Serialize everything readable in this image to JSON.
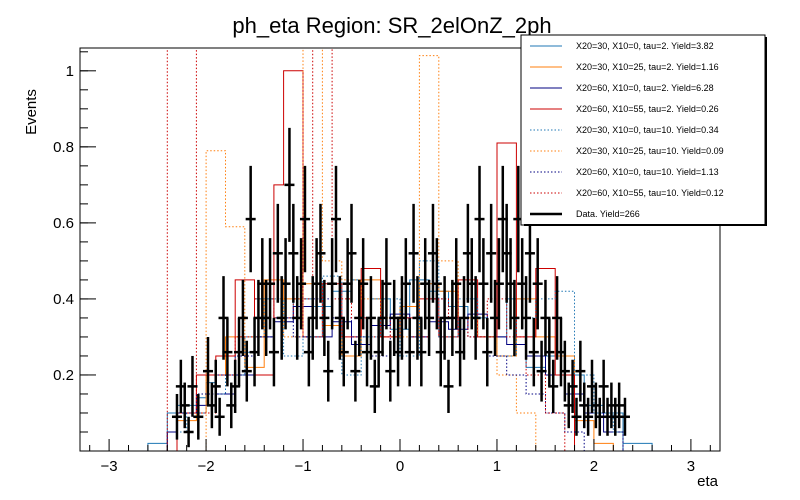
{
  "chart_data": {
    "type": "line",
    "title": "ph_eta Region: SR_2elOnZ_2ph",
    "xlabel": "eta",
    "ylabel": "Events",
    "xlim": [
      -3.3,
      3.3
    ],
    "ylim": [
      0,
      1.06
    ],
    "xticks": [
      -3,
      -2,
      -1,
      0,
      1,
      2,
      3
    ],
    "yticks": [
      0.2,
      0.4,
      0.6,
      0.8,
      1
    ],
    "legend_position": "top-right",
    "bin_edges": [
      -3.3,
      -2.8,
      -2.6,
      -2.4,
      -2.3,
      -2.2,
      -2.1,
      -2.0,
      -1.9,
      -1.8,
      -1.7,
      -1.6,
      -1.5,
      -1.4,
      -1.3,
      -1.2,
      -1.1,
      -1.0,
      -0.9,
      -0.8,
      -0.7,
      -0.6,
      -0.5,
      -0.4,
      -0.3,
      -0.2,
      -0.1,
      0.0,
      0.1,
      0.2,
      0.3,
      0.4,
      0.5,
      0.6,
      0.7,
      0.8,
      0.9,
      1.0,
      1.1,
      1.2,
      1.3,
      1.4,
      1.5,
      1.6,
      1.7,
      1.8,
      1.9,
      2.0,
      2.1,
      2.2,
      2.3,
      2.4,
      2.6,
      2.8,
      3.3
    ],
    "series": [
      {
        "name": "X20=30, X10=0, tau=2. Yield=3.82",
        "color": "#1f77b4",
        "style": "solid",
        "values": [
          0,
          0,
          0.02,
          0.1,
          0.12,
          0.12,
          0.14,
          0.18,
          0.15,
          0.15,
          0.26,
          0.26,
          0.4,
          0.4,
          0.35,
          0.35,
          0.4,
          0.4,
          0.38,
          0.38,
          0.42,
          0.42,
          0.45,
          0.45,
          0.4,
          0.4,
          0.32,
          0.32,
          0.45,
          0.45,
          0.42,
          0.42,
          0.38,
          0.38,
          0.35,
          0.35,
          0.3,
          0.3,
          0.4,
          0.4,
          0.22,
          0.22,
          0.25,
          0.25,
          0.2,
          0.2,
          0.12,
          0.12,
          0.1,
          0.1,
          0.02,
          0.02,
          0
        ]
      },
      {
        "name": "X20=30, X10=25, tau=2. Yield=1.16",
        "color": "#ff7f0e",
        "style": "solid",
        "values": [
          0,
          0,
          0,
          0.05,
          0.08,
          0.08,
          0.1,
          0.2,
          0.2,
          0.3,
          0.3,
          0.22,
          0.22,
          0.45,
          0.45,
          0.4,
          0.4,
          0.44,
          0.44,
          0.33,
          0.33,
          0.25,
          0.25,
          0.45,
          0.45,
          0.3,
          0.3,
          0.38,
          0.38,
          0.44,
          0.44,
          0.42,
          0.42,
          0.35,
          0.35,
          0.3,
          0.3,
          0.25,
          0.25,
          0.4,
          0.4,
          0.3,
          0.3,
          0.25,
          0.25,
          0.08,
          0.08,
          0.02,
          0.02,
          0,
          0,
          0,
          0
        ]
      },
      {
        "name": "X20=60, X10=0, tau=2. Yield=6.28",
        "color": "#000080",
        "style": "solid",
        "values": [
          0,
          0,
          0,
          0.05,
          0.1,
          0.1,
          0.12,
          0.12,
          0.15,
          0.15,
          0.2,
          0.2,
          0.3,
          0.3,
          0.34,
          0.34,
          0.38,
          0.38,
          0.3,
          0.3,
          0.34,
          0.34,
          0.28,
          0.28,
          0.33,
          0.33,
          0.36,
          0.36,
          0.3,
          0.3,
          0.34,
          0.34,
          0.32,
          0.32,
          0.36,
          0.36,
          0.3,
          0.3,
          0.28,
          0.28,
          0.25,
          0.25,
          0.2,
          0.2,
          0.15,
          0.15,
          0.1,
          0.1,
          0.05,
          0.05,
          0,
          0,
          0
        ]
      },
      {
        "name": "X20=60, X10=55, tau=2. Yield=0.26",
        "color": "#cc0000",
        "style": "solid",
        "values": [
          0,
          0,
          0,
          0,
          0.1,
          0.1,
          0.2,
          0.2,
          0.25,
          0.25,
          0.45,
          0.45,
          0.2,
          0.2,
          0.7,
          1.0,
          1.0,
          0.3,
          0.3,
          0.44,
          0.44,
          0.3,
          0.3,
          0.48,
          0.48,
          0.3,
          0.3,
          0.35,
          0.35,
          0.4,
          0.4,
          0.3,
          0.3,
          0.45,
          0.45,
          0.3,
          0.3,
          0.81,
          0.81,
          0.3,
          0.3,
          0.48,
          0.48,
          0.2,
          0.2,
          0,
          0,
          0,
          0,
          0,
          0,
          0,
          0
        ]
      },
      {
        "name": "X20=30, X10=0, tau=10. Yield=0.34",
        "color": "#1f77b4",
        "style": "dotted",
        "values": [
          0,
          0,
          0,
          0.05,
          0.05,
          0.1,
          0.1,
          0.15,
          0.15,
          0.2,
          0.2,
          0.3,
          0.3,
          0.4,
          0.4,
          0.25,
          0.25,
          0.3,
          0.3,
          0.46,
          0.46,
          0.2,
          0.2,
          0.3,
          0.3,
          0.4,
          0.4,
          0.25,
          0.25,
          0.5,
          0.5,
          0.3,
          0.3,
          0.4,
          0.4,
          0.3,
          0.3,
          0.25,
          0.25,
          0.35,
          0.35,
          0.4,
          0.4,
          0.42,
          0.42,
          0.2,
          0.2,
          0.1,
          0.1,
          0.05,
          0,
          0,
          0
        ]
      },
      {
        "name": "X20=30, X10=25, tau=10. Yield=0.09",
        "color": "#ff7f0e",
        "style": "dotted",
        "values": [
          0,
          0,
          0,
          0,
          0,
          0,
          0,
          0.79,
          0.79,
          0.59,
          0.59,
          0.3,
          0.3,
          0.4,
          0.4,
          0.3,
          0.3,
          1.06,
          1.06,
          0.5,
          0.5,
          0.45,
          0.45,
          0.4,
          0.4,
          0.35,
          0.35,
          0.3,
          0.3,
          1.04,
          1.04,
          0.5,
          0.5,
          0.35,
          0.35,
          0.3,
          0.3,
          0.2,
          0.2,
          0.1,
          0.1,
          0,
          0,
          0,
          0,
          0,
          0,
          0,
          0,
          0,
          0,
          0,
          0
        ]
      },
      {
        "name": "X20=60, X10=0, tau=10. Yield=1.13",
        "color": "#000080",
        "style": "dotted",
        "values": [
          0,
          0,
          0,
          0.05,
          0.1,
          0.1,
          0.15,
          0.15,
          0.2,
          0.2,
          0.25,
          0.25,
          0.3,
          0.3,
          0.35,
          0.35,
          0.3,
          0.3,
          0.4,
          0.4,
          0.35,
          0.35,
          0.3,
          0.3,
          0.25,
          0.25,
          0.35,
          0.35,
          0.3,
          0.3,
          0.4,
          0.4,
          0.35,
          0.35,
          0.3,
          0.3,
          0.25,
          0.25,
          0.2,
          0.2,
          0.15,
          0.15,
          0.1,
          0.1,
          0.05,
          0.05,
          0,
          0,
          0,
          0,
          0,
          0,
          0
        ]
      },
      {
        "name": "X20=60, X10=55, tau=10. Yield=0.12",
        "color": "#cc0000",
        "style": "dotted",
        "values": [
          0,
          0,
          0,
          1.06,
          1.06,
          1.06,
          0.1,
          0.1,
          0.2,
          0.2,
          0.3,
          0.3,
          0.4,
          0.4,
          0.35,
          0.35,
          0.4,
          0.4,
          1.06,
          1.06,
          0.4,
          0.4,
          0.35,
          0.35,
          0.3,
          0.3,
          0.35,
          0.35,
          0.3,
          0.3,
          0.4,
          0.4,
          0.35,
          0.35,
          0.3,
          0.3,
          0.4,
          0.4,
          0.3,
          0.3,
          0.2,
          0.2,
          0.1,
          0.1,
          0,
          0,
          0,
          0,
          0,
          0,
          0,
          0,
          0
        ]
      }
    ],
    "data_series": {
      "name": "Data. Yield=266",
      "color": "#000000",
      "points": [
        {
          "x": -2.3,
          "y": 0.09,
          "err": 0.06
        },
        {
          "x": -2.26,
          "y": 0.17,
          "err": 0.07
        },
        {
          "x": -2.22,
          "y": 0.12,
          "err": 0.06
        },
        {
          "x": -2.18,
          "y": 0.05,
          "err": 0.04
        },
        {
          "x": -2.14,
          "y": 0.17,
          "err": 0.08
        },
        {
          "x": -2.08,
          "y": 0.09,
          "err": 0.06
        },
        {
          "x": -1.98,
          "y": 0.21,
          "err": 0.09
        },
        {
          "x": -1.94,
          "y": 0.12,
          "err": 0.06
        },
        {
          "x": -1.9,
          "y": 0.17,
          "err": 0.07
        },
        {
          "x": -1.86,
          "y": 0.09,
          "err": 0.05
        },
        {
          "x": -1.82,
          "y": 0.35,
          "err": 0.11
        },
        {
          "x": -1.78,
          "y": 0.26,
          "err": 0.09
        },
        {
          "x": -1.74,
          "y": 0.12,
          "err": 0.06
        },
        {
          "x": -1.7,
          "y": 0.17,
          "err": 0.07
        },
        {
          "x": -1.66,
          "y": 0.26,
          "err": 0.09
        },
        {
          "x": -1.62,
          "y": 0.35,
          "err": 0.1
        },
        {
          "x": -1.58,
          "y": 0.21,
          "err": 0.08
        },
        {
          "x": -1.54,
          "y": 0.61,
          "err": 0.14
        },
        {
          "x": -1.5,
          "y": 0.26,
          "err": 0.09
        },
        {
          "x": -1.46,
          "y": 0.35,
          "err": 0.1
        },
        {
          "x": -1.42,
          "y": 0.44,
          "err": 0.12
        },
        {
          "x": -1.38,
          "y": 0.35,
          "err": 0.1
        },
        {
          "x": -1.34,
          "y": 0.44,
          "err": 0.12
        },
        {
          "x": -1.3,
          "y": 0.26,
          "err": 0.09
        },
        {
          "x": -1.26,
          "y": 0.52,
          "err": 0.13
        },
        {
          "x": -1.22,
          "y": 0.35,
          "err": 0.11
        },
        {
          "x": -1.18,
          "y": 0.44,
          "err": 0.12
        },
        {
          "x": -1.14,
          "y": 0.7,
          "err": 0.15
        },
        {
          "x": -1.1,
          "y": 0.52,
          "err": 0.13
        },
        {
          "x": -1.06,
          "y": 0.35,
          "err": 0.11
        },
        {
          "x": -1.02,
          "y": 0.44,
          "err": 0.12
        },
        {
          "x": -0.98,
          "y": 0.61,
          "err": 0.14
        },
        {
          "x": -0.94,
          "y": 0.26,
          "err": 0.09
        },
        {
          "x": -0.9,
          "y": 0.35,
          "err": 0.11
        },
        {
          "x": -0.86,
          "y": 0.44,
          "err": 0.12
        },
        {
          "x": -0.82,
          "y": 0.52,
          "err": 0.13
        },
        {
          "x": -0.78,
          "y": 0.35,
          "err": 0.1
        },
        {
          "x": -0.74,
          "y": 0.21,
          "err": 0.08
        },
        {
          "x": -0.7,
          "y": 0.44,
          "err": 0.12
        },
        {
          "x": -0.66,
          "y": 0.61,
          "err": 0.14
        },
        {
          "x": -0.62,
          "y": 0.35,
          "err": 0.11
        },
        {
          "x": -0.58,
          "y": 0.26,
          "err": 0.09
        },
        {
          "x": -0.54,
          "y": 0.44,
          "err": 0.12
        },
        {
          "x": -0.5,
          "y": 0.52,
          "err": 0.13
        },
        {
          "x": -0.46,
          "y": 0.21,
          "err": 0.08
        },
        {
          "x": -0.42,
          "y": 0.35,
          "err": 0.1
        },
        {
          "x": -0.38,
          "y": 0.44,
          "err": 0.12
        },
        {
          "x": -0.34,
          "y": 0.26,
          "err": 0.09
        },
        {
          "x": -0.3,
          "y": 0.35,
          "err": 0.11
        },
        {
          "x": -0.26,
          "y": 0.17,
          "err": 0.07
        },
        {
          "x": -0.22,
          "y": 0.26,
          "err": 0.09
        },
        {
          "x": -0.18,
          "y": 0.35,
          "err": 0.1
        },
        {
          "x": -0.14,
          "y": 0.44,
          "err": 0.12
        },
        {
          "x": -0.1,
          "y": 0.21,
          "err": 0.08
        },
        {
          "x": -0.06,
          "y": 0.35,
          "err": 0.1
        },
        {
          "x": -0.02,
          "y": 0.26,
          "err": 0.09
        },
        {
          "x": 0.02,
          "y": 0.35,
          "err": 0.11
        },
        {
          "x": 0.06,
          "y": 0.44,
          "err": 0.12
        },
        {
          "x": 0.1,
          "y": 0.26,
          "err": 0.09
        },
        {
          "x": 0.14,
          "y": 0.52,
          "err": 0.13
        },
        {
          "x": 0.18,
          "y": 0.35,
          "err": 0.11
        },
        {
          "x": 0.22,
          "y": 0.26,
          "err": 0.09
        },
        {
          "x": 0.26,
          "y": 0.44,
          "err": 0.12
        },
        {
          "x": 0.3,
          "y": 0.35,
          "err": 0.1
        },
        {
          "x": 0.34,
          "y": 0.52,
          "err": 0.13
        },
        {
          "x": 0.38,
          "y": 0.44,
          "err": 0.12
        },
        {
          "x": 0.42,
          "y": 0.26,
          "err": 0.09
        },
        {
          "x": 0.46,
          "y": 0.35,
          "err": 0.11
        },
        {
          "x": 0.5,
          "y": 0.17,
          "err": 0.07
        },
        {
          "x": 0.54,
          "y": 0.35,
          "err": 0.1
        },
        {
          "x": 0.58,
          "y": 0.44,
          "err": 0.12
        },
        {
          "x": 0.62,
          "y": 0.26,
          "err": 0.09
        },
        {
          "x": 0.66,
          "y": 0.35,
          "err": 0.11
        },
        {
          "x": 0.7,
          "y": 0.52,
          "err": 0.13
        },
        {
          "x": 0.74,
          "y": 0.44,
          "err": 0.12
        },
        {
          "x": 0.78,
          "y": 0.35,
          "err": 0.11
        },
        {
          "x": 0.82,
          "y": 0.61,
          "err": 0.14
        },
        {
          "x": 0.86,
          "y": 0.44,
          "err": 0.12
        },
        {
          "x": 0.9,
          "y": 0.26,
          "err": 0.09
        },
        {
          "x": 0.94,
          "y": 0.52,
          "err": 0.13
        },
        {
          "x": 0.98,
          "y": 0.35,
          "err": 0.1
        },
        {
          "x": 1.02,
          "y": 0.44,
          "err": 0.12
        },
        {
          "x": 1.06,
          "y": 0.61,
          "err": 0.14
        },
        {
          "x": 1.1,
          "y": 0.52,
          "err": 0.13
        },
        {
          "x": 1.14,
          "y": 0.44,
          "err": 0.12
        },
        {
          "x": 1.18,
          "y": 0.35,
          "err": 0.1
        },
        {
          "x": 1.22,
          "y": 0.61,
          "err": 0.14
        },
        {
          "x": 1.26,
          "y": 0.44,
          "err": 0.12
        },
        {
          "x": 1.3,
          "y": 0.35,
          "err": 0.11
        },
        {
          "x": 1.34,
          "y": 0.52,
          "err": 0.13
        },
        {
          "x": 1.38,
          "y": 0.26,
          "err": 0.09
        },
        {
          "x": 1.42,
          "y": 0.44,
          "err": 0.12
        },
        {
          "x": 1.46,
          "y": 0.21,
          "err": 0.08
        },
        {
          "x": 1.5,
          "y": 0.35,
          "err": 0.1
        },
        {
          "x": 1.54,
          "y": 0.26,
          "err": 0.09
        },
        {
          "x": 1.58,
          "y": 0.17,
          "err": 0.07
        },
        {
          "x": 1.62,
          "y": 0.35,
          "err": 0.11
        },
        {
          "x": 1.66,
          "y": 0.26,
          "err": 0.09
        },
        {
          "x": 1.7,
          "y": 0.21,
          "err": 0.08
        },
        {
          "x": 1.74,
          "y": 0.12,
          "err": 0.06
        },
        {
          "x": 1.78,
          "y": 0.17,
          "err": 0.07
        },
        {
          "x": 1.82,
          "y": 0.09,
          "err": 0.05
        },
        {
          "x": 1.86,
          "y": 0.21,
          "err": 0.08
        },
        {
          "x": 1.9,
          "y": 0.12,
          "err": 0.06
        },
        {
          "x": 1.94,
          "y": 0.09,
          "err": 0.05
        },
        {
          "x": 1.98,
          "y": 0.17,
          "err": 0.07
        },
        {
          "x": 2.02,
          "y": 0.12,
          "err": 0.06
        },
        {
          "x": 2.06,
          "y": 0.09,
          "err": 0.05
        },
        {
          "x": 2.1,
          "y": 0.17,
          "err": 0.07
        },
        {
          "x": 2.14,
          "y": 0.09,
          "err": 0.05
        },
        {
          "x": 2.18,
          "y": 0.12,
          "err": 0.06
        },
        {
          "x": 2.22,
          "y": 0.09,
          "err": 0.05
        },
        {
          "x": 2.26,
          "y": 0.12,
          "err": 0.06
        },
        {
          "x": 2.32,
          "y": 0.09,
          "err": 0.05
        }
      ]
    }
  }
}
